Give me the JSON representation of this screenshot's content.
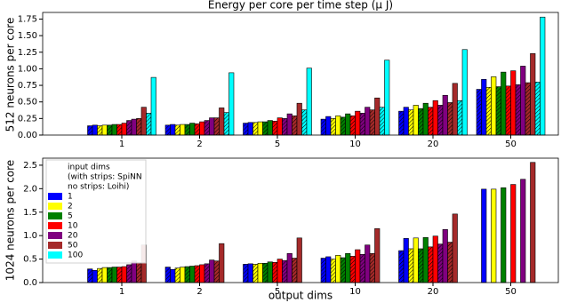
{
  "chart_data": [
    {
      "type": "bar",
      "title": "Energy per core per time step (μ J)",
      "ylabel": "512 neurons per core",
      "categories": [
        "1",
        "2",
        "5",
        "10",
        "20",
        "50"
      ],
      "ylim": [
        0,
        1.85
      ],
      "yticks": [
        {
          "value": 0,
          "label": "0.00"
        },
        0.25,
        {
          "value": 0.5,
          "label": "0.50"
        },
        0.75,
        {
          "value": 1,
          "label": "1.00"
        },
        1.25,
        {
          "value": 1.5,
          "label": "1.50"
        },
        1.75
      ],
      "series": [
        {
          "name": "1",
          "color": "#0000ff",
          "spinn_values": [
            0.14,
            0.15,
            0.18,
            0.24,
            0.36,
            0.69
          ],
          "loihi_values": [
            0.15,
            0.16,
            0.19,
            0.28,
            0.42,
            0.84
          ]
        },
        {
          "name": "2",
          "color": "#ffff00",
          "spinn_values": [
            0.14,
            0.15,
            0.19,
            0.25,
            0.38,
            0.72
          ],
          "loihi_values": [
            0.15,
            0.16,
            0.2,
            0.29,
            0.45,
            0.88
          ]
        },
        {
          "name": "5",
          "color": "#008000",
          "spinn_values": [
            0.15,
            0.16,
            0.2,
            0.27,
            0.4,
            0.73
          ],
          "loihi_values": [
            0.16,
            0.18,
            0.22,
            0.32,
            0.48,
            0.95
          ]
        },
        {
          "name": "10",
          "color": "#ff0000",
          "spinn_values": [
            0.16,
            0.17,
            0.21,
            0.29,
            0.42,
            0.74
          ],
          "loihi_values": [
            0.18,
            0.2,
            0.26,
            0.36,
            0.52,
            0.97
          ]
        },
        {
          "name": "20",
          "color": "#800080",
          "spinn_values": [
            0.22,
            0.22,
            0.25,
            0.33,
            0.45,
            0.76
          ],
          "loihi_values": [
            0.24,
            0.26,
            0.32,
            0.42,
            0.6,
            1.04
          ]
        },
        {
          "name": "50",
          "color": "#a52a2a",
          "spinn_values": [
            0.25,
            0.26,
            0.29,
            0.38,
            0.49,
            0.79
          ],
          "loihi_values": [
            0.42,
            0.41,
            0.48,
            0.56,
            0.78,
            1.23
          ]
        },
        {
          "name": "100",
          "color": "#00ffff",
          "spinn_values": [
            0.33,
            0.34,
            0.38,
            0.42,
            0.52,
            0.8
          ],
          "loihi_values": [
            0.87,
            0.94,
            1.01,
            1.13,
            1.29,
            1.78
          ]
        }
      ]
    },
    {
      "type": "bar",
      "ylabel": "1024 neurons per core",
      "xlabel": "output dims",
      "categories": [
        "1",
        "2",
        "5",
        "10",
        "20",
        "50"
      ],
      "ylim": [
        0,
        2.65
      ],
      "yticks": [
        {
          "value": 0,
          "label": "0.0"
        },
        0.5,
        {
          "value": 1,
          "label": "1.0"
        },
        1.5,
        {
          "value": 2,
          "label": "2.0"
        },
        2.5
      ],
      "legend_title": [
        "input dims",
        "(with strips: SpiNN",
        "no strips: Loihi)"
      ],
      "series": [
        {
          "name": "1",
          "color": "#0000ff",
          "spinn_values": [
            0.29,
            0.33,
            0.39,
            0.52,
            0.68,
            null
          ],
          "loihi_values": [
            0.26,
            0.28,
            0.4,
            0.55,
            0.94,
            1.99
          ]
        },
        {
          "name": "2",
          "color": "#ffff00",
          "spinn_values": [
            0.3,
            0.31,
            0.39,
            0.5,
            0.72,
            null
          ],
          "loihi_values": [
            0.32,
            0.33,
            0.41,
            0.58,
            0.95,
            1.99
          ]
        },
        {
          "name": "5",
          "color": "#008000",
          "spinn_values": [
            0.32,
            0.34,
            0.41,
            0.53,
            0.72,
            null
          ],
          "loihi_values": [
            0.33,
            0.35,
            0.44,
            0.62,
            0.96,
            2.02
          ]
        },
        {
          "name": "10",
          "color": "#ff0000",
          "spinn_values": [
            0.33,
            0.36,
            0.43,
            0.56,
            0.76,
            null
          ],
          "loihi_values": [
            0.34,
            0.38,
            0.5,
            0.7,
            0.99,
            2.09
          ]
        },
        {
          "name": "20",
          "color": "#800080",
          "spinn_values": [
            0.38,
            0.4,
            0.47,
            0.6,
            0.82,
            null
          ],
          "loihi_values": [
            0.46,
            0.48,
            0.62,
            0.8,
            1.13,
            2.2
          ]
        },
        {
          "name": "50",
          "color": "#a52a2a",
          "spinn_values": [
            0.42,
            0.46,
            0.52,
            0.62,
            0.86,
            null
          ],
          "loihi_values": [
            0.8,
            0.83,
            0.95,
            1.15,
            1.46,
            2.56
          ]
        },
        {
          "name": "100",
          "color": "#00ffff",
          "spinn_values": [
            null,
            null,
            null,
            null,
            null,
            null
          ],
          "loihi_values": [
            null,
            null,
            null,
            null,
            null,
            null
          ]
        }
      ]
    }
  ]
}
